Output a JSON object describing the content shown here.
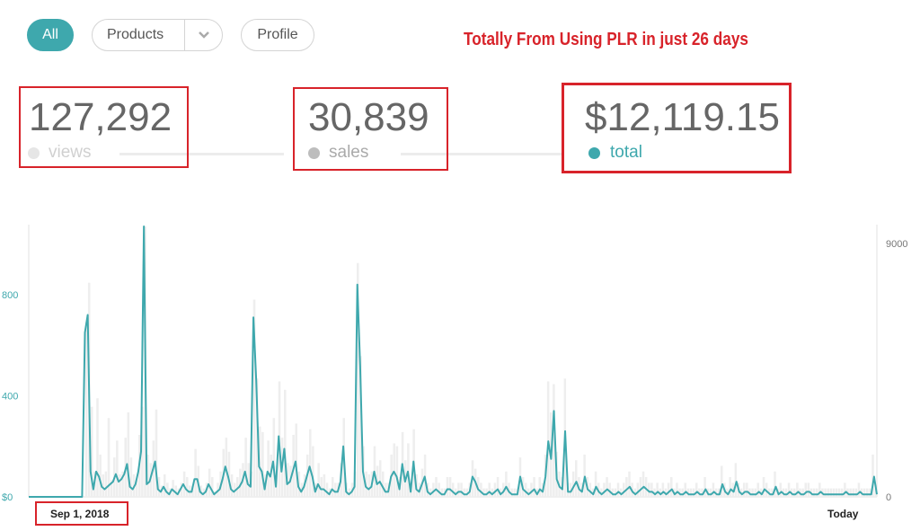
{
  "filters": {
    "all_label": "All",
    "products_label": "Products",
    "profile_label": "Profile"
  },
  "headline": "Totally From Using PLR in just 26 days",
  "stats": {
    "views": {
      "value": "127,292",
      "label": "views"
    },
    "sales": {
      "value": "30,839",
      "label": "sales"
    },
    "total": {
      "value": "$12,119.15",
      "label": "total"
    }
  },
  "colors": {
    "accent": "#3ea8ad",
    "highlight": "#d8232a",
    "muted": "#bbbbbb"
  },
  "chart_data": {
    "type": "line",
    "x_start_label": "Sep 1, 2018",
    "x_end_label": "Today",
    "left_axis": {
      "ticks": [
        {
          "value": 0,
          "label": "$0"
        },
        {
          "value": 400,
          "label": "400"
        },
        {
          "value": 800,
          "label": "800"
        }
      ],
      "ylim": [
        0,
        1070
      ]
    },
    "right_axis": {
      "ticks": [
        {
          "value": 0,
          "label": "0"
        },
        {
          "value": 9000,
          "label": "9000"
        }
      ],
      "ylim": [
        0,
        9600
      ]
    },
    "series": [
      {
        "color": "#3ea8ad",
        "axis": "left",
        "values": [
          0,
          0,
          0,
          0,
          0,
          0,
          0,
          0,
          0,
          0,
          0,
          0,
          0,
          0,
          0,
          0,
          0,
          0,
          0,
          0,
          650,
          720,
          100,
          30,
          100,
          80,
          40,
          30,
          40,
          50,
          60,
          90,
          60,
          70,
          90,
          130,
          40,
          30,
          50,
          100,
          180,
          1070,
          50,
          60,
          100,
          140,
          30,
          20,
          40,
          20,
          10,
          30,
          20,
          10,
          30,
          50,
          30,
          20,
          20,
          70,
          70,
          20,
          10,
          20,
          50,
          30,
          10,
          20,
          30,
          70,
          120,
          80,
          30,
          20,
          30,
          40,
          60,
          100,
          50,
          40,
          710,
          460,
          120,
          100,
          30,
          100,
          80,
          140,
          40,
          240,
          100,
          190,
          50,
          60,
          100,
          140,
          40,
          20,
          40,
          80,
          120,
          80,
          20,
          50,
          30,
          30,
          20,
          10,
          30,
          20,
          20,
          60,
          200,
          20,
          10,
          20,
          40,
          840,
          520,
          100,
          40,
          30,
          40,
          100,
          50,
          60,
          40,
          20,
          20,
          80,
          100,
          80,
          30,
          130,
          60,
          100,
          20,
          140,
          30,
          20,
          50,
          80,
          20,
          10,
          20,
          30,
          20,
          10,
          10,
          30,
          30,
          20,
          10,
          20,
          20,
          10,
          10,
          20,
          80,
          60,
          30,
          20,
          10,
          10,
          20,
          10,
          20,
          30,
          10,
          20,
          40,
          20,
          10,
          10,
          10,
          80,
          30,
          20,
          10,
          20,
          30,
          10,
          30,
          20,
          80,
          220,
          150,
          340,
          70,
          40,
          30,
          260,
          20,
          20,
          40,
          60,
          30,
          20,
          80,
          30,
          20,
          10,
          40,
          20,
          10,
          20,
          30,
          20,
          10,
          10,
          20,
          10,
          20,
          30,
          40,
          20,
          10,
          20,
          30,
          40,
          30,
          20,
          20,
          10,
          20,
          10,
          20,
          10,
          20,
          30,
          10,
          20,
          10,
          10,
          20,
          10,
          10,
          10,
          20,
          10,
          10,
          30,
          10,
          10,
          20,
          10,
          10,
          50,
          20,
          10,
          30,
          20,
          60,
          20,
          10,
          20,
          20,
          10,
          10,
          10,
          20,
          10,
          30,
          20,
          10,
          10,
          40,
          10,
          20,
          10,
          10,
          20,
          10,
          10,
          20,
          10,
          10,
          20,
          20,
          10,
          10,
          10,
          20,
          10,
          10,
          10,
          10,
          10,
          10,
          10,
          10,
          20,
          10,
          10,
          10,
          10,
          20,
          10,
          10,
          10,
          10,
          80,
          10
        ]
      },
      {
        "color": "#eeeeee",
        "axis": "right",
        "kind": "bars",
        "values": [
          0,
          0,
          0,
          0,
          0,
          0,
          0,
          0,
          0,
          0,
          0,
          0,
          0,
          0,
          0,
          0,
          0,
          0,
          0,
          0,
          6200,
          7600,
          3200,
          900,
          3500,
          1500,
          800,
          900,
          2800,
          600,
          1400,
          2000,
          800,
          900,
          2100,
          3000,
          1400,
          800,
          600,
          2200,
          3200,
          9600,
          1500,
          1200,
          2000,
          3100,
          700,
          400,
          800,
          500,
          300,
          600,
          400,
          300,
          500,
          900,
          700,
          400,
          400,
          1700,
          1100,
          400,
          300,
          500,
          1000,
          700,
          200,
          500,
          900,
          1700,
          2100,
          1600,
          800,
          500,
          700,
          1000,
          1200,
          2100,
          1200,
          900,
          7000,
          4200,
          2500,
          2300,
          800,
          2000,
          1500,
          2800,
          1100,
          4100,
          2100,
          3800,
          1200,
          1100,
          2200,
          2600,
          900,
          500,
          800,
          1500,
          2400,
          1800,
          500,
          1200,
          700,
          800,
          500,
          300,
          700,
          500,
          500,
          1200,
          2800,
          500,
          300,
          500,
          900,
          8300,
          5000,
          1800,
          900,
          800,
          900,
          1800,
          1100,
          1300,
          900,
          500,
          500,
          1500,
          1900,
          1800,
          700,
          2300,
          1300,
          1900,
          500,
          2400,
          800,
          500,
          1000,
          1500,
          500,
          300,
          500,
          700,
          500,
          300,
          300,
          700,
          700,
          500,
          300,
          500,
          500,
          300,
          300,
          500,
          1300,
          1000,
          700,
          500,
          300,
          300,
          500,
          300,
          500,
          700,
          300,
          500,
          900,
          500,
          300,
          300,
          300,
          1400,
          700,
          500,
          300,
          500,
          700,
          300,
          700,
          500,
          1500,
          4100,
          3000,
          4000,
          1600,
          900,
          700,
          4200,
          500,
          500,
          900,
          1300,
          700,
          500,
          1500,
          700,
          500,
          300,
          900,
          500,
          300,
          500,
          700,
          500,
          300,
          300,
          500,
          300,
          500,
          700,
          900,
          500,
          300,
          500,
          700,
          900,
          700,
          500,
          500,
          300,
          500,
          300,
          500,
          300,
          500,
          700,
          300,
          500,
          300,
          300,
          500,
          300,
          300,
          300,
          500,
          300,
          300,
          700,
          300,
          300,
          500,
          300,
          300,
          1100,
          500,
          300,
          700,
          500,
          1200,
          500,
          300,
          500,
          500,
          300,
          300,
          300,
          500,
          300,
          700,
          500,
          300,
          300,
          900,
          300,
          500,
          300,
          300,
          500,
          300,
          300,
          500,
          300,
          300,
          500,
          500,
          300,
          300,
          300,
          500,
          300,
          300,
          300,
          300,
          300,
          300,
          300,
          300,
          500,
          300,
          300,
          300,
          300,
          500,
          300,
          300,
          300,
          300,
          1500,
          300
        ]
      }
    ]
  }
}
